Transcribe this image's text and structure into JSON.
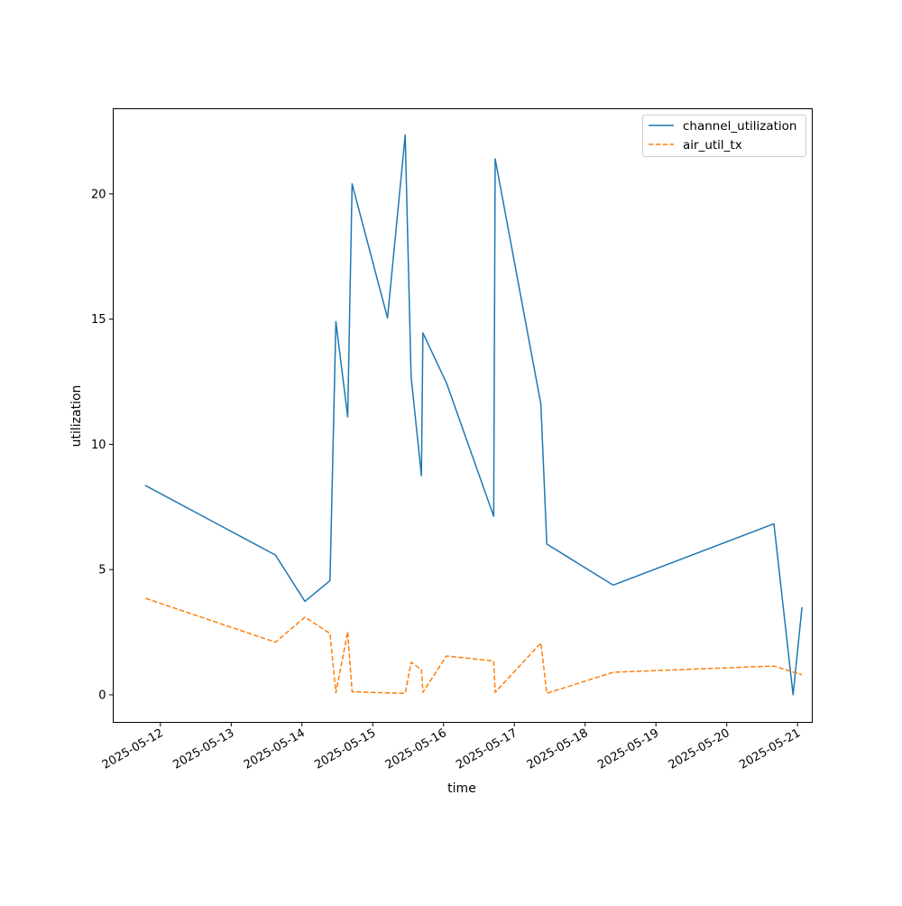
{
  "chart_data": {
    "type": "line",
    "title": "",
    "xlabel": "time",
    "ylabel": "utilization",
    "xlim": [
      "2025-05-11T08:00",
      "2025-05-21T05:00"
    ],
    "ylim": [
      -1.1,
      23.4
    ],
    "x_ticks": [
      "2025-05-12",
      "2025-05-13",
      "2025-05-14",
      "2025-05-15",
      "2025-05-16",
      "2025-05-17",
      "2025-05-18",
      "2025-05-19",
      "2025-05-20",
      "2025-05-21"
    ],
    "y_ticks": [
      0,
      5,
      10,
      15,
      20
    ],
    "grid": false,
    "legend_position": "top-right",
    "series": [
      {
        "name": "channel_utilization",
        "color": "#1f77b4",
        "line_style": "solid",
        "points": [
          [
            "2025-05-11T19:00",
            8.35
          ],
          [
            "2025-05-13T15:00",
            5.58
          ],
          [
            "2025-05-14T01:00",
            3.73
          ],
          [
            "2025-05-14T09:30",
            4.56
          ],
          [
            "2025-05-14T11:30",
            14.9
          ],
          [
            "2025-05-14T15:30",
            11.1
          ],
          [
            "2025-05-14T17:00",
            20.4
          ],
          [
            "2025-05-15T05:00",
            15.05
          ],
          [
            "2025-05-15T11:00",
            22.35
          ],
          [
            "2025-05-15T13:00",
            12.7
          ],
          [
            "2025-05-15T16:30",
            8.75
          ],
          [
            "2025-05-15T17:00",
            14.45
          ],
          [
            "2025-05-16T01:00",
            12.45
          ],
          [
            "2025-05-16T17:00",
            7.13
          ],
          [
            "2025-05-16T17:30",
            21.4
          ],
          [
            "2025-05-17T09:00",
            11.6
          ],
          [
            "2025-05-17T11:00",
            6.02
          ],
          [
            "2025-05-18T09:30",
            4.38
          ],
          [
            "2025-05-20T16:00",
            6.83
          ],
          [
            "2025-05-20T22:30",
            0.0
          ],
          [
            "2025-05-21T01:30",
            3.47
          ]
        ]
      },
      {
        "name": "air_util_tx",
        "color": "#ff7f0e",
        "line_style": "dashed",
        "points": [
          [
            "2025-05-11T19:00",
            3.85
          ],
          [
            "2025-05-13T15:00",
            2.1
          ],
          [
            "2025-05-14T01:00",
            3.1
          ],
          [
            "2025-05-14T09:30",
            2.45
          ],
          [
            "2025-05-14T11:30",
            0.08
          ],
          [
            "2025-05-14T15:30",
            2.52
          ],
          [
            "2025-05-14T17:00",
            0.12
          ],
          [
            "2025-05-15T11:00",
            0.06
          ],
          [
            "2025-05-15T13:00",
            1.3
          ],
          [
            "2025-05-15T16:30",
            1.0
          ],
          [
            "2025-05-15T17:00",
            0.1
          ],
          [
            "2025-05-16T01:00",
            1.55
          ],
          [
            "2025-05-16T17:00",
            1.35
          ],
          [
            "2025-05-16T17:30",
            0.1
          ],
          [
            "2025-05-17T09:00",
            2.07
          ],
          [
            "2025-05-17T11:00",
            0.06
          ],
          [
            "2025-05-18T09:30",
            0.9
          ],
          [
            "2025-05-20T16:00",
            1.15
          ],
          [
            "2025-05-21T01:30",
            0.8
          ]
        ]
      }
    ]
  }
}
